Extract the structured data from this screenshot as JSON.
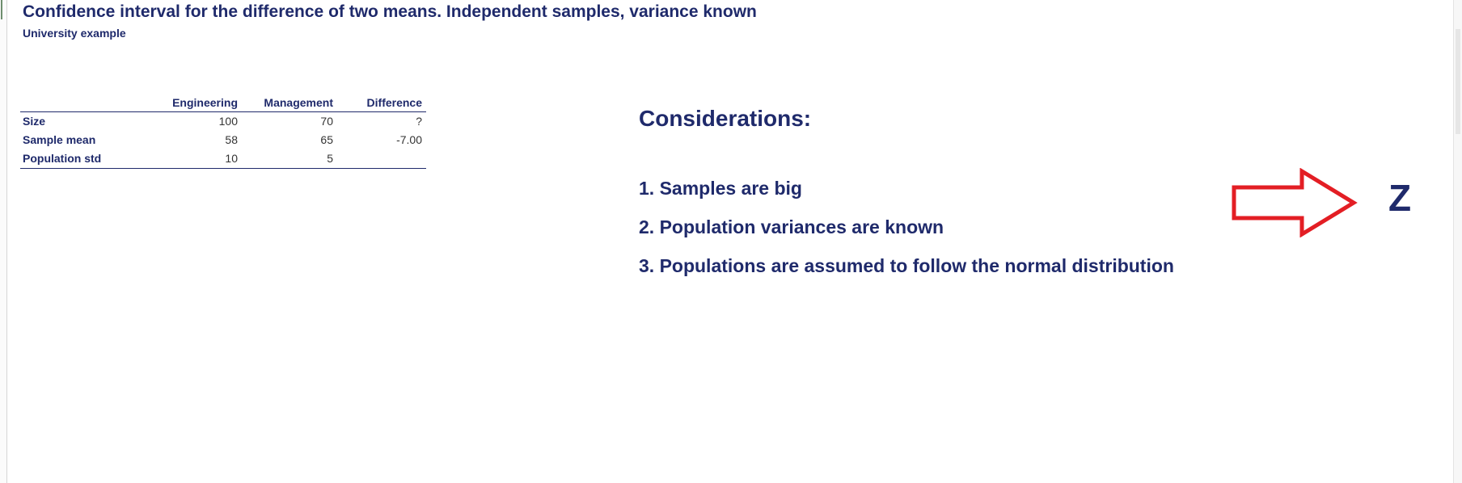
{
  "header": {
    "title": "Confidence interval for the difference of two means. Independent samples, variance known",
    "subtitle": "University example"
  },
  "table": {
    "columns": [
      "Engineering",
      "Management",
      "Difference"
    ],
    "rows": [
      {
        "label": "Size",
        "values": [
          "100",
          "70",
          "?"
        ]
      },
      {
        "label": "Sample mean",
        "values": [
          "58",
          "65",
          "-7.00"
        ]
      },
      {
        "label": "Population std",
        "values": [
          "10",
          "5",
          ""
        ]
      }
    ]
  },
  "considerations": {
    "title": "Considerations:",
    "items": [
      "1. Samples are big",
      "2. Population variances are known",
      "3. Populations are assumed to follow the normal distribution"
    ]
  },
  "result": {
    "letter": "Z",
    "arrow_color": "#e31e24"
  },
  "colors": {
    "text": "#1f2a6b"
  }
}
